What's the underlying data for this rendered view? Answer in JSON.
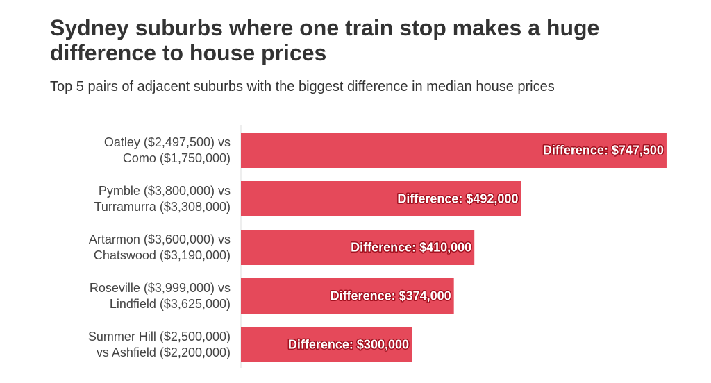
{
  "chart_data": {
    "type": "bar",
    "orientation": "horizontal",
    "title": "Sydney suburbs where one train stop makes a huge difference to house prices",
    "subtitle": "Top 5 pairs of adjacent suburbs with the biggest difference in median house prices",
    "categories": [
      "Oatley ($2,497,500) vs\nComo ($1,750,000)",
      "Pymble ($3,800,000) vs\nTurramurra ($3,308,000)",
      "Artarmon ($3,600,000) vs\nChatswood ($3,190,000)",
      "Roseville ($3,999,000) vs\nLindfield ($3,625,000)",
      "Summer Hill ($2,500,000)\nvs Ashfield ($2,200,000)"
    ],
    "values": [
      747500,
      492000,
      410000,
      374000,
      300000
    ],
    "value_labels": [
      "Difference: $747,500",
      "Difference: $492,000",
      "Difference: $410,000",
      "Difference: $374,000",
      "Difference: $300,000"
    ],
    "color": "#e5495a",
    "xlim": [
      0,
      750000
    ]
  }
}
